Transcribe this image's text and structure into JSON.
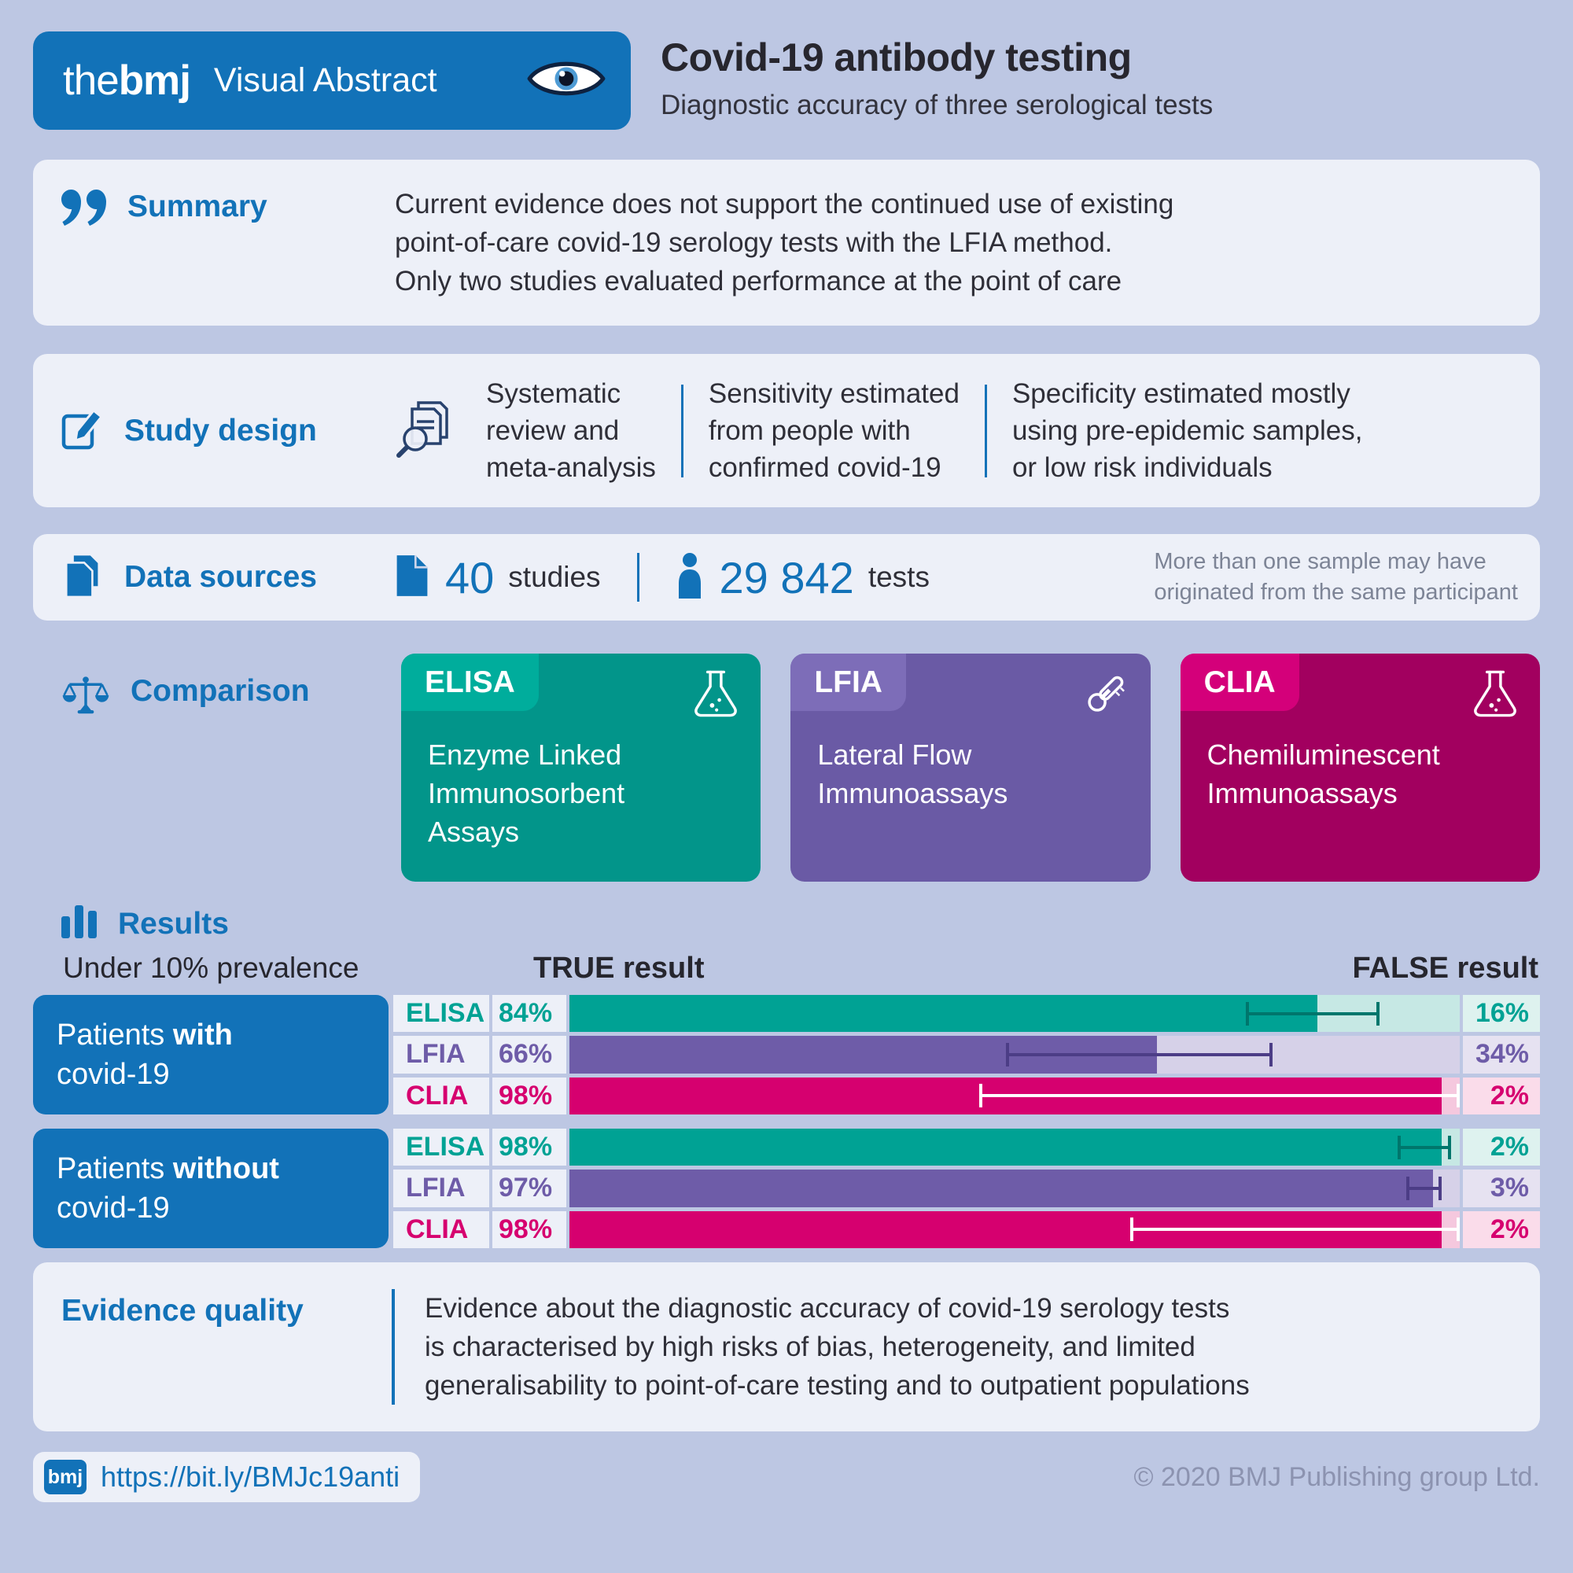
{
  "colors": {
    "page_bg": "#bdc7e3",
    "panel_bg": "#edf0f8",
    "brand_blue": "#1272b8",
    "dark_text": "#2f2f38",
    "muted_note": "#7d8496",
    "copyright": "#8c93b0"
  },
  "header": {
    "brand_the": "the",
    "brand_bmj": "bmj",
    "brand_suffix": "Visual Abstract",
    "title": "Covid-19 antibody testing",
    "subtitle": "Diagnostic accuracy of three serological tests"
  },
  "summary": {
    "label": "Summary",
    "text": "Current evidence does not support the continued use of existing\npoint-of-care covid-19 serology tests with the LFIA method.\nOnly two studies evaluated performance at the point of care"
  },
  "study_design": {
    "label": "Study design",
    "items": [
      "Systematic\nreview and\nmeta-analysis",
      "Sensitivity estimated\nfrom people with\nconfirmed covid-19",
      "Specificity estimated mostly\nusing pre-epidemic samples,\nor low risk individuals"
    ]
  },
  "data_sources": {
    "label": "Data sources",
    "studies_value": "40",
    "studies_unit": "studies",
    "tests_value": "29 842",
    "tests_unit": "tests",
    "note": "More than one sample may have\noriginated from the same participant"
  },
  "comparison": {
    "label": "Comparison",
    "cards": [
      {
        "abbr": "ELISA",
        "name": "Enzyme Linked\nImmunosorbent\nAssays",
        "color": "#02958a",
        "tab_color": "#00ad9c",
        "icon": "flask-icon"
      },
      {
        "abbr": "LFIA",
        "name": "Lateral Flow\nImmunoassays",
        "color": "#6a5aa5",
        "tab_color": "#7d6db8",
        "icon": "thermometer-icon"
      },
      {
        "abbr": "CLIA",
        "name": "Chemiluminescent\nImmunoassays",
        "color": "#a2005f",
        "tab_color": "#d4007a",
        "icon": "flask-icon"
      }
    ]
  },
  "results": {
    "label": "Results",
    "prevalence_note": "Under 10% prevalence",
    "true_header": "TRUE result",
    "false_header": "FALSE result",
    "groups": [
      {
        "label_pre": "Patients ",
        "label_strong": "with",
        "label_post": "covid-19"
      },
      {
        "label_pre": "Patients ",
        "label_strong": "without",
        "label_post": "covid-19"
      }
    ]
  },
  "chart_data": {
    "type": "bar",
    "orientation": "horizontal",
    "title": "Results — Under 10% prevalence",
    "xlabel": "TRUE result vs FALSE result",
    "unit": "%",
    "xlim": [
      0,
      100
    ],
    "legend": [
      "ELISA",
      "LFIA",
      "CLIA"
    ],
    "groups": [
      {
        "category": "Patients with covid-19",
        "rows": [
          {
            "test": "ELISA",
            "true_result": 84,
            "false_result": 16,
            "ci": [
              76,
              91
            ],
            "color": "#00a294",
            "light": "#c6e8e4",
            "lighter": "#def2ef",
            "ci_color": "#00766c"
          },
          {
            "test": "LFIA",
            "true_result": 66,
            "false_result": 34,
            "ci": [
              49,
              79
            ],
            "color": "#6e5ca8",
            "light": "#d6d1e8",
            "lighter": "#e6e2f1",
            "ci_color": "#4c3d86"
          },
          {
            "test": "CLIA",
            "true_result": 98,
            "false_result": 2,
            "ci": [
              46,
              100
            ],
            "color": "#d6006f",
            "light": "#f5c8de",
            "lighter": "#fadcea",
            "ci_color": "#ffffff"
          }
        ]
      },
      {
        "category": "Patients without covid-19",
        "rows": [
          {
            "test": "ELISA",
            "true_result": 98,
            "false_result": 2,
            "ci": [
              93,
              99
            ],
            "color": "#00a294",
            "light": "#c6e8e4",
            "lighter": "#def2ef",
            "ci_color": "#00766c"
          },
          {
            "test": "LFIA",
            "true_result": 97,
            "false_result": 3,
            "ci": [
              94,
              98
            ],
            "color": "#6e5ca8",
            "light": "#d6d1e8",
            "lighter": "#e6e2f1",
            "ci_color": "#4c3d86"
          },
          {
            "test": "CLIA",
            "true_result": 98,
            "false_result": 2,
            "ci": [
              63,
              100
            ],
            "color": "#d6006f",
            "light": "#f5c8de",
            "lighter": "#fadcea",
            "ci_color": "#ffffff"
          }
        ]
      }
    ]
  },
  "evidence": {
    "label": "Evidence quality",
    "text": "Evidence about the diagnostic accuracy of covid-19 serology tests\nis characterised by high risks of bias, heterogeneity, and limited\ngeneralisability to point-of-care testing and to outpatient populations"
  },
  "footer": {
    "logo": "bmj",
    "url": "https://bit.ly/BMJc19anti",
    "copyright": "© 2020 BMJ Publishing group Ltd."
  }
}
